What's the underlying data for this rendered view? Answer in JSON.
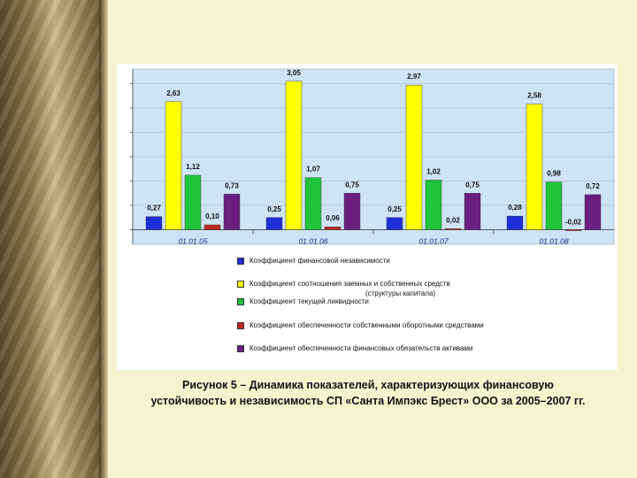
{
  "chart_data": {
    "type": "bar",
    "categories": [
      "01.01.05",
      "01.01.06",
      "01.01.07",
      "01.01.08"
    ],
    "series": [
      {
        "name": "Коэффициент финансовой независимости",
        "values": [
          0.27,
          0.25,
          0.25,
          0.28
        ],
        "labels": [
          "0,27",
          "0,25",
          "0,25",
          "0,28"
        ],
        "color": "#1f2fd6"
      },
      {
        "name": "Коэффициент соотношения заемных и собственных средств",
        "values": [
          2.63,
          3.05,
          2.97,
          2.58
        ],
        "labels": [
          "2,63",
          "3,05",
          "2,97",
          "2,58"
        ],
        "color": "#ffff00"
      },
      {
        "name": "Коэффициент текущей ликвидности",
        "values": [
          1.12,
          1.07,
          1.02,
          0.98
        ],
        "labels": [
          "1,12",
          "1,07",
          "1,02",
          "0,98"
        ],
        "color": "#1fc43a"
      },
      {
        "name": "Коэффициент обеспеченности собственными оборотными средствами",
        "values": [
          0.1,
          0.06,
          0.02,
          -0.02
        ],
        "labels": [
          "0,10",
          "0,06",
          "0,02",
          "-0,02"
        ],
        "color": "#c0271c"
      },
      {
        "name": "Коэффициент обеспеченности финансовых обязательств активами",
        "values": [
          0.73,
          0.75,
          0.75,
          0.72
        ],
        "labels": [
          "0,73",
          "0,75",
          "0,75",
          "0,72"
        ],
        "color": "#6a1f80"
      }
    ],
    "legend_extra": "(структуры капитала)",
    "ylim": [
      -0.3,
      3.3
    ],
    "grid": true,
    "legend_position": "bottom",
    "background_color": "#cfe3f6",
    "title": "",
    "xlabel": "",
    "ylabel": ""
  },
  "caption": {
    "line1": "Рисунок 5 – Динамика показателей, характеризующих финансовую",
    "line2": "устойчивость и независимость СП «Санта Импэкс Брест» ООО за 2005–2007 гг."
  }
}
